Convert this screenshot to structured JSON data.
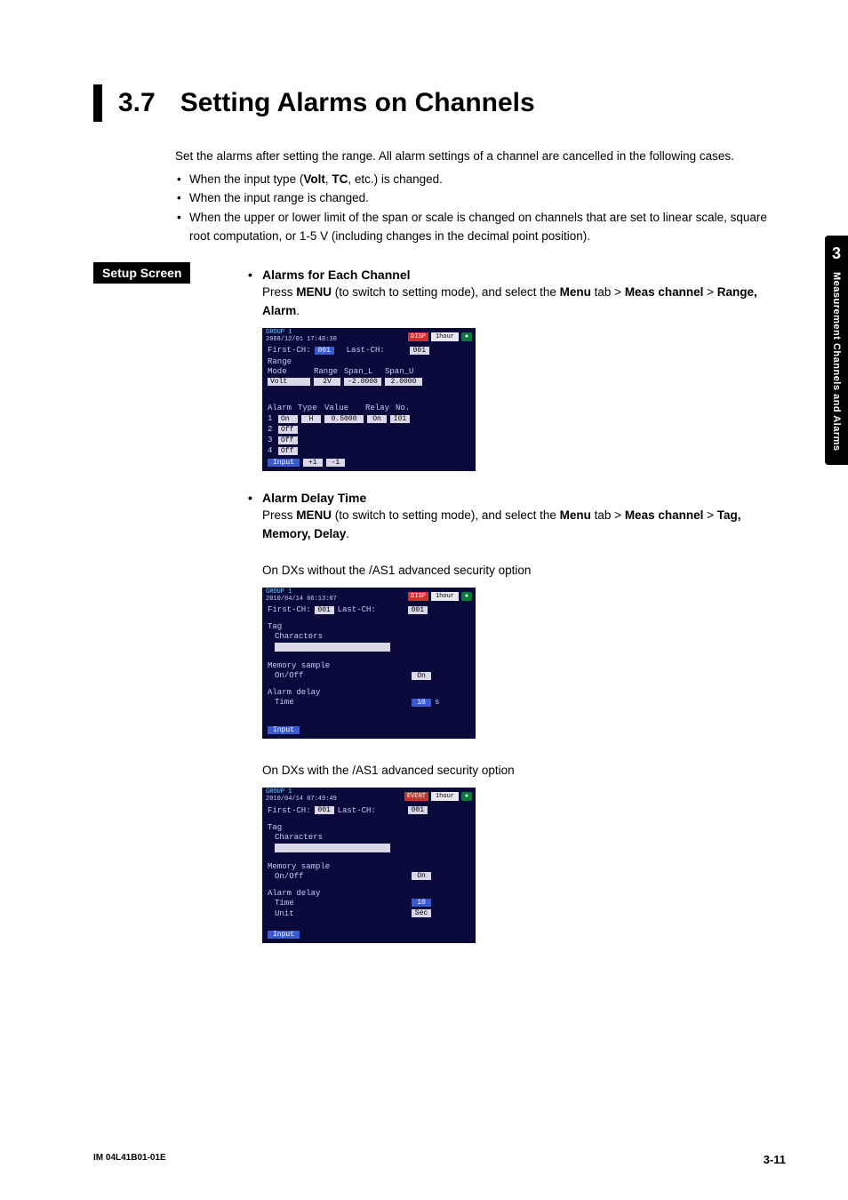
{
  "section": {
    "number": "3.7",
    "title": "Setting Alarms on Channels"
  },
  "intro": "Set the alarms after setting the range. All alarm settings of a channel are cancelled in the following cases.",
  "intro_bullets": [
    {
      "pre": "When the input type (",
      "b1": "Volt",
      "mid1": ", ",
      "b2": "TC",
      "post": ", etc.) is changed."
    },
    {
      "text": "When the input range is changed."
    },
    {
      "text": "When the upper or lower limit of the span or scale is changed on channels that are set to linear scale, square root computation, or 1-5 V (including changes in the decimal point position)."
    }
  ],
  "setup_label": "Setup Screen",
  "sub1": {
    "title": "Alarms for Each Channel",
    "press": "Press ",
    "menu1": "MENU",
    "mid": " (to switch to setting mode), and select the ",
    "menu_tab": "Menu",
    "mid2": " tab > ",
    "meas": "Meas channel",
    "gt": " > ",
    "dest": "Range, Alarm",
    "period": "."
  },
  "scr1": {
    "group": "GROUP 1",
    "timestamp": "2008/12/01 17:48:30",
    "disp": "DISP",
    "hour": "1hour",
    "first_ch": "First-CH:",
    "first_val": "001",
    "last_ch": "Last-CH:",
    "last_val": "001",
    "range_hdr": "Range",
    "mode": "Mode",
    "range": "Range",
    "span_l": "Span_L",
    "span_u": "Span_U",
    "mode_v": "Volt",
    "range_v": "2V",
    "span_l_v": "-2.0000",
    "span_u_v": "2.0000",
    "alarm_hdr": "Alarm",
    "cols": {
      "type": "Type",
      "value": "Value",
      "relay": "Relay",
      "no": "No."
    },
    "rows": [
      {
        "n": "1",
        "state": "On",
        "type": "H",
        "value": "0.5000",
        "relay": "On",
        "no": "I01"
      },
      {
        "n": "2",
        "state": "Off"
      },
      {
        "n": "3",
        "state": "Off"
      },
      {
        "n": "4",
        "state": "Off"
      }
    ],
    "input": "Input",
    "p1": "+1",
    "m1": "-1"
  },
  "sub2": {
    "title": "Alarm Delay Time",
    "press": "Press ",
    "menu1": "MENU",
    "mid": " (to switch to setting mode), and select the ",
    "menu_tab": "Menu",
    "mid2": " tab > ",
    "meas": "Meas channel",
    "gt": " > ",
    "dest": "Tag, Memory, Delay",
    "period": "."
  },
  "caption_a": "On DXs without the /AS1 advanced security option",
  "scr2": {
    "group": "GROUP 1",
    "timestamp": "2010/04/14 06:13:07",
    "disp": "DISP",
    "hour": "1hour",
    "first_ch": "First-CH:",
    "first_val": "001",
    "last_ch": "Last-CH:",
    "last_val": "001",
    "tag": "Tag",
    "characters": "Characters",
    "memsample": "Memory sample",
    "onoff": "On/Off",
    "onoff_v": "On",
    "alarmdelay": "Alarm delay",
    "time": "Time",
    "time_v": "10",
    "time_unit": "s",
    "input": "Input"
  },
  "caption_b": "On DXs with the /AS1 advanced security option",
  "scr3": {
    "group": "GROUP 1",
    "timestamp": "2010/04/14 07:49:49",
    "disp": "EVENT",
    "hour": "1hour",
    "first_ch": "First-CH:",
    "first_val": "001",
    "last_ch": "Last-CH:",
    "last_val": "001",
    "tag": "Tag",
    "characters": "Characters",
    "memsample": "Memory sample",
    "onoff": "On/Off",
    "onoff_v": "On",
    "alarmdelay": "Alarm delay",
    "time": "Time",
    "time_v": "10",
    "unit": "Unit",
    "unit_v": "Sec",
    "input": "Input"
  },
  "side": {
    "num": "3",
    "text": "Measurement Channels and Alarms"
  },
  "footer": {
    "left": "IM 04L41B01-01E",
    "right": "3-11"
  }
}
